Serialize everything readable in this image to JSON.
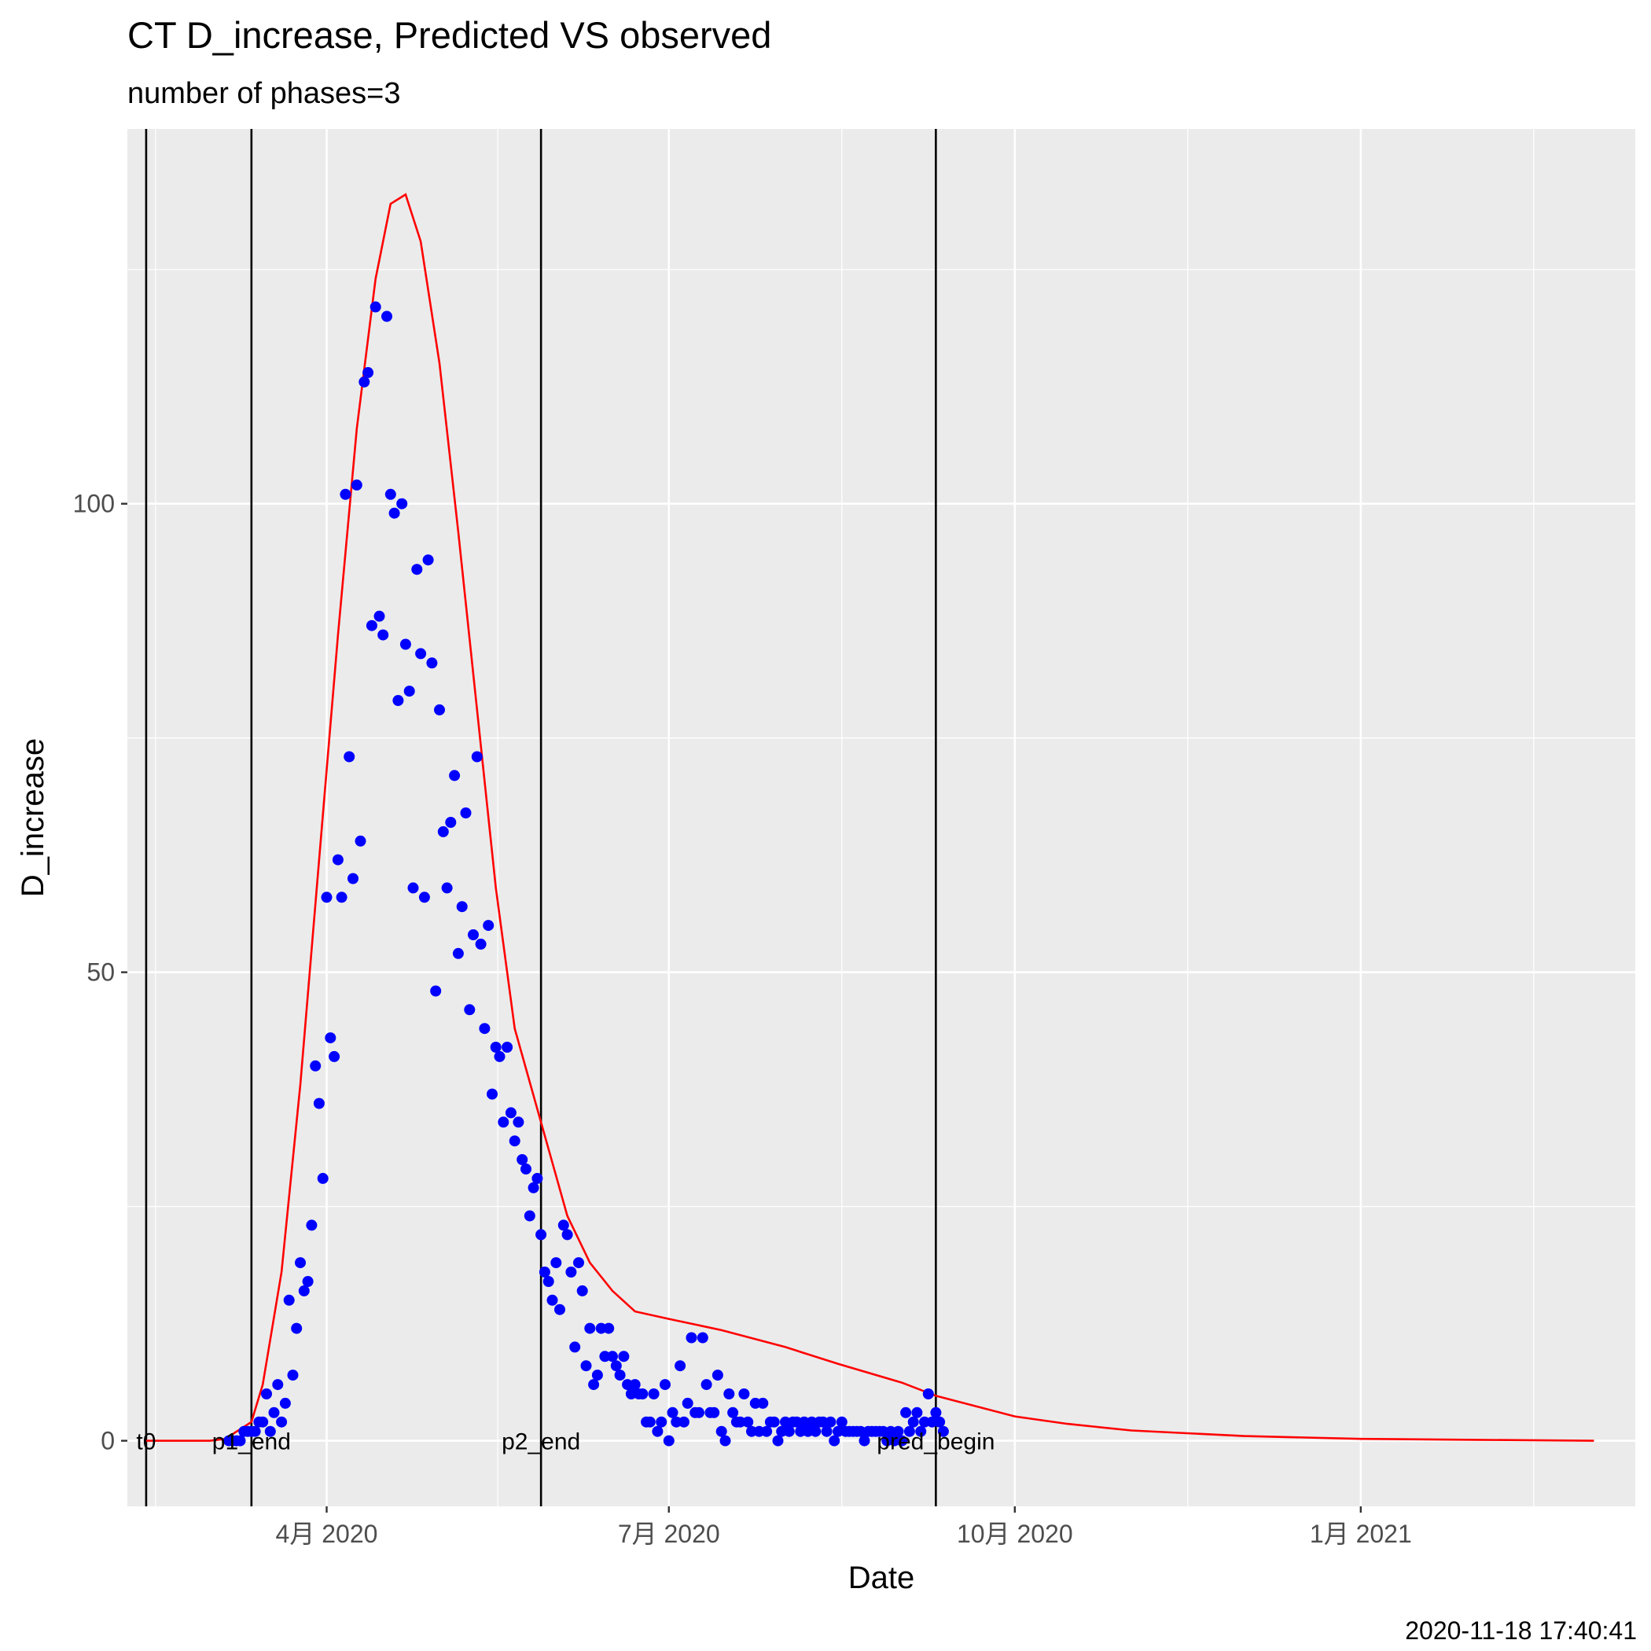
{
  "chart_data": {
    "type": "scatter",
    "title": "CT D_increase, Predicted VS observed",
    "subtitle": "number of phases=3",
    "xlabel": "Date",
    "ylabel": "D_increase",
    "timestamp": "2020-11-18 17:40:41",
    "xlim": [
      "2020-02-08",
      "2021-03-15"
    ],
    "ylim": [
      -7,
      140
    ],
    "x_ticks": [
      {
        "date": "2020-04-01",
        "label": "4月 2020"
      },
      {
        "date": "2020-07-01",
        "label": "7月 2020"
      },
      {
        "date": "2020-10-01",
        "label": "10月 2020"
      },
      {
        "date": "2021-01-01",
        "label": "1月 2021"
      }
    ],
    "y_ticks": [
      {
        "value": 0,
        "label": "0"
      },
      {
        "value": 50,
        "label": "50"
      },
      {
        "value": 100,
        "label": "100"
      }
    ],
    "grid": true,
    "background": "#ebebeb",
    "vertical_lines": [
      {
        "date": "2020-02-13",
        "label": "t0"
      },
      {
        "date": "2020-03-12",
        "label": "p1_end"
      },
      {
        "date": "2020-05-28",
        "label": "p2_end"
      },
      {
        "date": "2020-09-10",
        "label": "pred_begin"
      }
    ],
    "series": [
      {
        "type": "scatter",
        "color": "#0000ff",
        "points": [
          [
            "2020-03-06",
            0
          ],
          [
            "2020-03-07",
            0
          ],
          [
            "2020-03-08",
            0
          ],
          [
            "2020-03-09",
            0
          ],
          [
            "2020-03-10",
            1
          ],
          [
            "2020-03-11",
            1
          ],
          [
            "2020-03-12",
            1
          ],
          [
            "2020-03-13",
            1
          ],
          [
            "2020-03-14",
            2
          ],
          [
            "2020-03-15",
            2
          ],
          [
            "2020-03-16",
            5
          ],
          [
            "2020-03-17",
            1
          ],
          [
            "2020-03-18",
            3
          ],
          [
            "2020-03-19",
            6
          ],
          [
            "2020-03-20",
            2
          ],
          [
            "2020-03-21",
            4
          ],
          [
            "2020-03-22",
            15
          ],
          [
            "2020-03-23",
            7
          ],
          [
            "2020-03-24",
            12
          ],
          [
            "2020-03-25",
            19
          ],
          [
            "2020-03-26",
            16
          ],
          [
            "2020-03-27",
            17
          ],
          [
            "2020-03-28",
            23
          ],
          [
            "2020-03-29",
            40
          ],
          [
            "2020-03-30",
            36
          ],
          [
            "2020-03-31",
            28
          ],
          [
            "2020-04-01",
            58
          ],
          [
            "2020-04-02",
            43
          ],
          [
            "2020-04-03",
            41
          ],
          [
            "2020-04-04",
            62
          ],
          [
            "2020-04-05",
            58
          ],
          [
            "2020-04-06",
            101
          ],
          [
            "2020-04-07",
            73
          ],
          [
            "2020-04-08",
            60
          ],
          [
            "2020-04-09",
            102
          ],
          [
            "2020-04-10",
            64
          ],
          [
            "2020-04-11",
            113
          ],
          [
            "2020-04-12",
            114
          ],
          [
            "2020-04-13",
            87
          ],
          [
            "2020-04-14",
            121
          ],
          [
            "2020-04-15",
            88
          ],
          [
            "2020-04-16",
            86
          ],
          [
            "2020-04-17",
            120
          ],
          [
            "2020-04-18",
            101
          ],
          [
            "2020-04-19",
            99
          ],
          [
            "2020-04-20",
            79
          ],
          [
            "2020-04-21",
            100
          ],
          [
            "2020-04-22",
            85
          ],
          [
            "2020-04-23",
            80
          ],
          [
            "2020-04-24",
            59
          ],
          [
            "2020-04-25",
            93
          ],
          [
            "2020-04-26",
            84
          ],
          [
            "2020-04-27",
            58
          ],
          [
            "2020-04-28",
            94
          ],
          [
            "2020-04-29",
            83
          ],
          [
            "2020-04-30",
            48
          ],
          [
            "2020-05-01",
            78
          ],
          [
            "2020-05-02",
            65
          ],
          [
            "2020-05-03",
            59
          ],
          [
            "2020-05-04",
            66
          ],
          [
            "2020-05-05",
            71
          ],
          [
            "2020-05-06",
            52
          ],
          [
            "2020-05-07",
            57
          ],
          [
            "2020-05-08",
            67
          ],
          [
            "2020-05-09",
            46
          ],
          [
            "2020-05-10",
            54
          ],
          [
            "2020-05-11",
            73
          ],
          [
            "2020-05-12",
            53
          ],
          [
            "2020-05-13",
            44
          ],
          [
            "2020-05-14",
            55
          ],
          [
            "2020-05-15",
            37
          ],
          [
            "2020-05-16",
            42
          ],
          [
            "2020-05-17",
            41
          ],
          [
            "2020-05-18",
            34
          ],
          [
            "2020-05-19",
            42
          ],
          [
            "2020-05-20",
            35
          ],
          [
            "2020-05-21",
            32
          ],
          [
            "2020-05-22",
            34
          ],
          [
            "2020-05-23",
            30
          ],
          [
            "2020-05-24",
            29
          ],
          [
            "2020-05-25",
            24
          ],
          [
            "2020-05-26",
            27
          ],
          [
            "2020-05-27",
            28
          ],
          [
            "2020-05-28",
            22
          ],
          [
            "2020-05-29",
            18
          ],
          [
            "2020-05-30",
            17
          ],
          [
            "2020-05-31",
            15
          ],
          [
            "2020-06-01",
            19
          ],
          [
            "2020-06-02",
            14
          ],
          [
            "2020-06-03",
            23
          ],
          [
            "2020-06-04",
            22
          ],
          [
            "2020-06-05",
            18
          ],
          [
            "2020-06-06",
            10
          ],
          [
            "2020-06-07",
            19
          ],
          [
            "2020-06-08",
            16
          ],
          [
            "2020-06-09",
            8
          ],
          [
            "2020-06-10",
            12
          ],
          [
            "2020-06-11",
            6
          ],
          [
            "2020-06-12",
            7
          ],
          [
            "2020-06-13",
            12
          ],
          [
            "2020-06-14",
            9
          ],
          [
            "2020-06-15",
            12
          ],
          [
            "2020-06-16",
            9
          ],
          [
            "2020-06-17",
            8
          ],
          [
            "2020-06-18",
            7
          ],
          [
            "2020-06-19",
            9
          ],
          [
            "2020-06-20",
            6
          ],
          [
            "2020-06-21",
            5
          ],
          [
            "2020-06-22",
            6
          ],
          [
            "2020-06-23",
            5
          ],
          [
            "2020-06-24",
            5
          ],
          [
            "2020-06-25",
            2
          ],
          [
            "2020-06-26",
            2
          ],
          [
            "2020-06-27",
            5
          ],
          [
            "2020-06-28",
            1
          ],
          [
            "2020-06-29",
            2
          ],
          [
            "2020-06-30",
            6
          ],
          [
            "2020-07-01",
            0
          ],
          [
            "2020-07-02",
            3
          ],
          [
            "2020-07-03",
            2
          ],
          [
            "2020-07-04",
            8
          ],
          [
            "2020-07-05",
            2
          ],
          [
            "2020-07-06",
            4
          ],
          [
            "2020-07-07",
            11
          ],
          [
            "2020-07-08",
            3
          ],
          [
            "2020-07-09",
            3
          ],
          [
            "2020-07-10",
            11
          ],
          [
            "2020-07-11",
            6
          ],
          [
            "2020-07-12",
            3
          ],
          [
            "2020-07-13",
            3
          ],
          [
            "2020-07-14",
            7
          ],
          [
            "2020-07-15",
            1
          ],
          [
            "2020-07-16",
            0
          ],
          [
            "2020-07-17",
            5
          ],
          [
            "2020-07-18",
            3
          ],
          [
            "2020-07-19",
            2
          ],
          [
            "2020-07-20",
            2
          ],
          [
            "2020-07-21",
            5
          ],
          [
            "2020-07-22",
            2
          ],
          [
            "2020-07-23",
            1
          ],
          [
            "2020-07-24",
            4
          ],
          [
            "2020-07-25",
            1
          ],
          [
            "2020-07-26",
            4
          ],
          [
            "2020-07-27",
            1
          ],
          [
            "2020-07-28",
            2
          ],
          [
            "2020-07-29",
            2
          ],
          [
            "2020-07-30",
            0
          ],
          [
            "2020-07-31",
            1
          ],
          [
            "2020-08-01",
            2
          ],
          [
            "2020-08-02",
            1
          ],
          [
            "2020-08-03",
            2
          ],
          [
            "2020-08-04",
            2
          ],
          [
            "2020-08-05",
            1
          ],
          [
            "2020-08-06",
            2
          ],
          [
            "2020-08-07",
            1
          ],
          [
            "2020-08-08",
            2
          ],
          [
            "2020-08-09",
            1
          ],
          [
            "2020-08-10",
            2
          ],
          [
            "2020-08-11",
            2
          ],
          [
            "2020-08-12",
            1
          ],
          [
            "2020-08-13",
            2
          ],
          [
            "2020-08-14",
            0
          ],
          [
            "2020-08-15",
            1
          ],
          [
            "2020-08-16",
            2
          ],
          [
            "2020-08-17",
            1
          ],
          [
            "2020-08-18",
            1
          ],
          [
            "2020-08-19",
            1
          ],
          [
            "2020-08-20",
            1
          ],
          [
            "2020-08-21",
            1
          ],
          [
            "2020-08-22",
            0
          ],
          [
            "2020-08-23",
            1
          ],
          [
            "2020-08-24",
            1
          ],
          [
            "2020-08-25",
            1
          ],
          [
            "2020-08-26",
            1
          ],
          [
            "2020-08-27",
            1
          ],
          [
            "2020-08-28",
            0
          ],
          [
            "2020-08-29",
            1
          ],
          [
            "2020-08-30",
            0
          ],
          [
            "2020-08-31",
            1
          ],
          [
            "2020-09-01",
            0
          ],
          [
            "2020-09-02",
            3
          ],
          [
            "2020-09-03",
            1
          ],
          [
            "2020-09-04",
            2
          ],
          [
            "2020-09-05",
            3
          ],
          [
            "2020-09-06",
            1
          ],
          [
            "2020-09-07",
            2
          ],
          [
            "2020-09-08",
            5
          ],
          [
            "2020-09-09",
            2
          ],
          [
            "2020-09-10",
            3
          ],
          [
            "2020-09-11",
            2
          ],
          [
            "2020-09-12",
            1
          ]
        ]
      },
      {
        "type": "line",
        "color": "#ff0000",
        "points": [
          [
            "2020-02-13",
            0
          ],
          [
            "2020-03-01",
            0
          ],
          [
            "2020-03-05",
            0.2
          ],
          [
            "2020-03-12",
            2
          ],
          [
            "2020-03-15",
            6
          ],
          [
            "2020-03-20",
            18
          ],
          [
            "2020-03-25",
            38
          ],
          [
            "2020-03-30",
            62
          ],
          [
            "2020-04-04",
            86
          ],
          [
            "2020-04-09",
            108
          ],
          [
            "2020-04-14",
            124
          ],
          [
            "2020-04-18",
            132
          ],
          [
            "2020-04-22",
            133
          ],
          [
            "2020-04-26",
            128
          ],
          [
            "2020-05-01",
            115
          ],
          [
            "2020-05-06",
            97
          ],
          [
            "2020-05-11",
            78
          ],
          [
            "2020-05-16",
            59
          ],
          [
            "2020-05-21",
            44
          ],
          [
            "2020-05-28",
            34
          ],
          [
            "2020-06-04",
            24
          ],
          [
            "2020-06-10",
            19
          ],
          [
            "2020-06-16",
            16
          ],
          [
            "2020-06-22",
            13.8
          ],
          [
            "2020-07-01",
            13
          ],
          [
            "2020-07-15",
            11.8
          ],
          [
            "2020-08-01",
            10
          ],
          [
            "2020-08-15",
            8.2
          ],
          [
            "2020-09-01",
            6.2
          ],
          [
            "2020-09-10",
            4.8
          ],
          [
            "2020-10-01",
            2.6
          ],
          [
            "2020-10-15",
            1.8
          ],
          [
            "2020-11-01",
            1.1
          ],
          [
            "2020-12-01",
            0.5
          ],
          [
            "2021-01-01",
            0.2
          ],
          [
            "2021-02-01",
            0.1
          ],
          [
            "2021-03-04",
            0
          ]
        ]
      }
    ]
  }
}
